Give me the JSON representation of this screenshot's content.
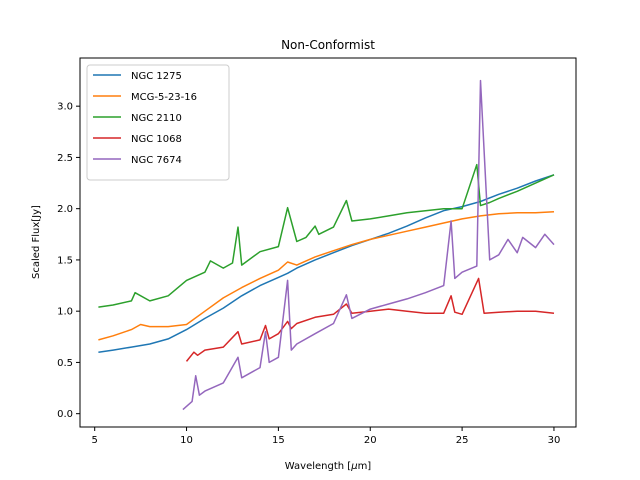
{
  "chart_data": {
    "type": "line",
    "title": "Non-Conformist",
    "xlabel_prefix": "Wavelength [",
    "xlabel_symbol": "μ",
    "xlabel_suffix": "m]",
    "ylabel": "Scaled Flux[Jy]",
    "xlim": [
      4.2,
      31.2
    ],
    "ylim": [
      -0.13,
      3.47
    ],
    "xticks": [
      5,
      10,
      15,
      20,
      25,
      30
    ],
    "yticks": [
      0.0,
      0.5,
      1.0,
      1.5,
      2.0,
      2.5,
      3.0
    ],
    "ytick_labels": [
      "0.0",
      "0.5",
      "1.0",
      "1.5",
      "2.0",
      "2.5",
      "3.0"
    ],
    "grid": false,
    "legend_position": "top-left",
    "series": [
      {
        "name": "NGC 1275",
        "color": "#1f77b4",
        "x": [
          5.2,
          6,
          7,
          8,
          9,
          10,
          11,
          12,
          13,
          14,
          15,
          15.5,
          16,
          17,
          18,
          19,
          20,
          21,
          22,
          23,
          24,
          25,
          26,
          27,
          28,
          29,
          30
        ],
        "y": [
          0.6,
          0.62,
          0.65,
          0.68,
          0.73,
          0.82,
          0.93,
          1.03,
          1.15,
          1.25,
          1.33,
          1.37,
          1.42,
          1.5,
          1.57,
          1.64,
          1.7,
          1.76,
          1.83,
          1.91,
          1.98,
          2.02,
          2.07,
          2.14,
          2.2,
          2.27,
          2.33
        ]
      },
      {
        "name": "MCG-5-23-16",
        "color": "#ff7f0e",
        "x": [
          5.2,
          6,
          7,
          7.5,
          8,
          9,
          10,
          11,
          12,
          13,
          14,
          15,
          15.5,
          16,
          17,
          18,
          19,
          20,
          21,
          22,
          23,
          24,
          25,
          26,
          27,
          28,
          29,
          30
        ],
        "y": [
          0.72,
          0.76,
          0.82,
          0.87,
          0.85,
          0.85,
          0.87,
          1.0,
          1.13,
          1.23,
          1.32,
          1.4,
          1.48,
          1.45,
          1.53,
          1.59,
          1.65,
          1.7,
          1.74,
          1.78,
          1.82,
          1.86,
          1.9,
          1.93,
          1.95,
          1.96,
          1.96,
          1.97
        ]
      },
      {
        "name": "NGC 2110",
        "color": "#2ca02c",
        "x": [
          5.2,
          6,
          7,
          7.2,
          8,
          9,
          10,
          11,
          11.3,
          12,
          12.5,
          12.8,
          13,
          14,
          15,
          15.5,
          16,
          16.5,
          17,
          17.2,
          18,
          18.7,
          19,
          20,
          21,
          22,
          23,
          24,
          25,
          25.8,
          26,
          26.5,
          27,
          28,
          29,
          30
        ],
        "y": [
          1.04,
          1.06,
          1.1,
          1.18,
          1.1,
          1.15,
          1.3,
          1.38,
          1.49,
          1.42,
          1.47,
          1.82,
          1.45,
          1.58,
          1.63,
          2.01,
          1.68,
          1.72,
          1.83,
          1.75,
          1.82,
          2.08,
          1.88,
          1.9,
          1.93,
          1.96,
          1.98,
          2.0,
          2.0,
          2.43,
          2.03,
          2.06,
          2.1,
          2.17,
          2.25,
          2.33
        ]
      },
      {
        "name": "NGC 1068",
        "color": "#d62728",
        "x": [
          10,
          10.4,
          10.6,
          11,
          12,
          12.8,
          13,
          14,
          14.3,
          14.5,
          15,
          15.5,
          15.7,
          16,
          17,
          18,
          18.7,
          19,
          20,
          21,
          22,
          23,
          24,
          24.4,
          24.6,
          25,
          25.9,
          26.2,
          27,
          28,
          29,
          30
        ],
        "y": [
          0.51,
          0.6,
          0.57,
          0.62,
          0.65,
          0.8,
          0.68,
          0.72,
          0.86,
          0.73,
          0.78,
          0.9,
          0.83,
          0.88,
          0.94,
          0.97,
          1.07,
          0.98,
          1.0,
          1.02,
          1.0,
          0.98,
          0.98,
          1.15,
          0.99,
          0.97,
          1.32,
          0.98,
          0.99,
          1.0,
          1.0,
          0.98
        ]
      },
      {
        "name": "NGC 7674",
        "color": "#9467bd",
        "x": [
          9.8,
          10.3,
          10.5,
          10.7,
          11,
          12,
          12.8,
          13,
          14,
          14.3,
          14.5,
          15,
          15.5,
          15.7,
          16,
          17,
          18,
          18.7,
          19,
          20,
          21,
          22,
          23,
          24,
          24.4,
          24.6,
          25,
          25.8,
          26,
          26.5,
          27,
          27.5,
          28,
          28.3,
          29,
          29.5,
          30
        ],
        "y": [
          0.04,
          0.12,
          0.37,
          0.18,
          0.22,
          0.3,
          0.55,
          0.35,
          0.45,
          0.8,
          0.5,
          0.55,
          1.3,
          0.62,
          0.68,
          0.78,
          0.88,
          1.16,
          0.93,
          1.02,
          1.07,
          1.12,
          1.18,
          1.25,
          1.88,
          1.32,
          1.38,
          1.44,
          3.25,
          1.5,
          1.55,
          1.7,
          1.57,
          1.72,
          1.62,
          1.75,
          1.65
        ]
      }
    ]
  }
}
